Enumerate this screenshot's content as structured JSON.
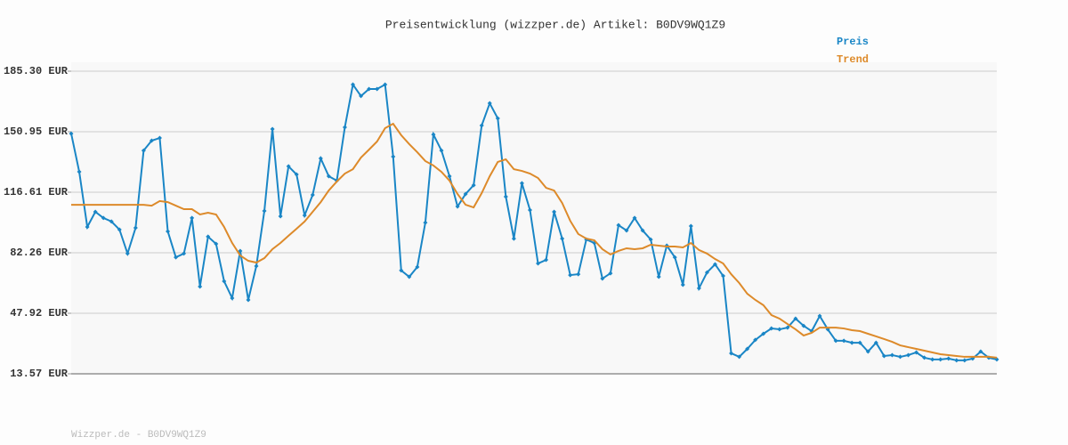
{
  "chart_data": {
    "type": "line",
    "title": "Preisentwicklung (wizzper.de) Artikel: B0DV9WQ1Z9",
    "footer": "Wizzper.de - B0DV9WQ1Z9",
    "ylim": [
      13.57,
      185.3
    ],
    "yticks": [
      {
        "value": 13.57,
        "label": "13.57 EUR"
      },
      {
        "value": 47.92,
        "label": "47.92 EUR"
      },
      {
        "value": 82.26,
        "label": "82.26 EUR"
      },
      {
        "value": 116.61,
        "label": "116.61 EUR"
      },
      {
        "value": 150.95,
        "label": "150.95 EUR"
      },
      {
        "value": 185.3,
        "label": "185.30 EUR"
      }
    ],
    "grid": true,
    "legend": "top-right",
    "series": [
      {
        "name": "Preis",
        "color": "#1a86c6",
        "markers": true,
        "values": [
          149.9,
          128.2,
          96.9,
          105.5,
          102,
          100,
          95.4,
          81.8,
          96.4,
          140.3,
          145.9,
          147.4,
          94.4,
          79.7,
          81.8,
          102,
          63.1,
          91.4,
          87.3,
          66.1,
          56.5,
          83.3,
          55.5,
          74.7,
          106,
          152.5,
          103,
          131.3,
          126.7,
          103.5,
          115.1,
          135.8,
          125.7,
          123.2,
          153.5,
          177.7,
          171.2,
          175.2,
          175.2,
          177.7,
          136.8,
          72.2,
          68.6,
          74.2,
          99.4,
          149.4,
          140.3,
          125.7,
          108.5,
          115.6,
          120.6,
          154.5,
          167.1,
          158.5,
          114.1,
          90.3,
          121.7,
          106.5,
          76.2,
          78.2,
          105.5,
          90.3,
          69.6,
          70.1,
          89.8,
          87.8,
          67.6,
          70.6,
          97.9,
          94.9,
          102,
          94.9,
          89.8,
          68.6,
          86.3,
          79.7,
          64.1,
          97.4,
          62.1,
          71.1,
          75.7,
          69.1,
          25.2,
          23.2,
          27.7,
          32.8,
          36.3,
          39.3,
          38.8,
          39.8,
          44.9,
          40.8,
          37.8,
          46.4,
          38.8,
          32.3,
          32.3,
          31.2,
          31.2,
          26.2,
          31.2,
          23.7,
          24.2,
          23.2,
          24.2,
          25.7,
          22.7,
          21.7,
          21.7,
          22.2,
          21.2,
          21.2,
          22.2,
          26.2,
          22.7,
          21.7
        ]
      },
      {
        "name": "Trend",
        "color": "#dd8a2a",
        "markers": false,
        "values": [
          109.5,
          109.5,
          109.5,
          109.5,
          109.5,
          109.5,
          109.5,
          109.5,
          109.5,
          109.5,
          109,
          111.6,
          111,
          109,
          107,
          107,
          104,
          105,
          104,
          96.9,
          87.8,
          80.7,
          77.7,
          76.7,
          79.2,
          84.3,
          87.8,
          91.9,
          95.9,
          100,
          105.5,
          111,
          117.6,
          122.7,
          127.2,
          129.7,
          136.3,
          140.8,
          145.4,
          153,
          155.5,
          149,
          143.9,
          139.3,
          134.3,
          131.8,
          128.2,
          123.2,
          115.6,
          109.5,
          108,
          116.1,
          125.7,
          133.8,
          135.3,
          129.7,
          128.7,
          127.2,
          124.7,
          119.1,
          117.6,
          110.5,
          100.4,
          92.9,
          90.3,
          89.3,
          84.3,
          81.3,
          83.3,
          84.8,
          84.3,
          84.8,
          86.8,
          86.3,
          85.8,
          85.8,
          85.3,
          87.8,
          83.8,
          81.8,
          78.7,
          76.2,
          70.1,
          65.1,
          59,
          55.5,
          52.5,
          46.9,
          44.9,
          41.8,
          38.8,
          35.3,
          36.8,
          39.8,
          39.8,
          39.8,
          39.3,
          38.3,
          37.8,
          36.3,
          34.8,
          33.3,
          31.7,
          29.7,
          28.7,
          27.7,
          26.7,
          25.7,
          24.7,
          24.2,
          23.7,
          23.2,
          23.2,
          23.2,
          23.2,
          22.7
        ]
      }
    ]
  }
}
